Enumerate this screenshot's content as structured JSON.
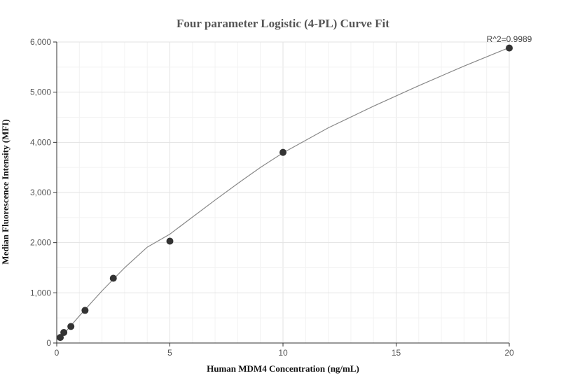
{
  "chart_data": {
    "type": "scatter",
    "title": "Four parameter Logistic (4-PL) Curve Fit",
    "xlabel": "Human MDM4 Concentration (ng/mL)",
    "ylabel": "Median Fluorescence Intensity (MFI)",
    "xlim": [
      0,
      20
    ],
    "ylim": [
      0,
      6000
    ],
    "x_ticks": [
      0,
      5,
      10,
      15,
      20
    ],
    "x_tick_labels": [
      "0",
      "5",
      "10",
      "15",
      "20"
    ],
    "y_ticks": [
      0,
      1000,
      2000,
      3000,
      4000,
      5000,
      6000
    ],
    "y_tick_labels": [
      "0",
      "1,000",
      "2,000",
      "3,000",
      "4,000",
      "5,000",
      "6,000"
    ],
    "grid": true,
    "annotation": "R^2=0.9989",
    "colors": {
      "points": "#333333",
      "curve": "#888888"
    },
    "series": [
      {
        "type": "scatter",
        "x": [
          0.156,
          0.313,
          0.625,
          1.25,
          2.5,
          5,
          10,
          20
        ],
        "y": [
          110,
          210,
          330,
          650,
          1290,
          2030,
          3800,
          5880
        ]
      },
      {
        "type": "line",
        "x": [
          0.1,
          0.5,
          1,
          2,
          3,
          4,
          5,
          6,
          7,
          8,
          9,
          10,
          12,
          14,
          16,
          18,
          20
        ],
        "y": [
          70,
          280,
          540,
          1040,
          1500,
          1910,
          2170,
          2510,
          2850,
          3180,
          3500,
          3790,
          4290,
          4720,
          5130,
          5520,
          5890
        ]
      }
    ]
  }
}
